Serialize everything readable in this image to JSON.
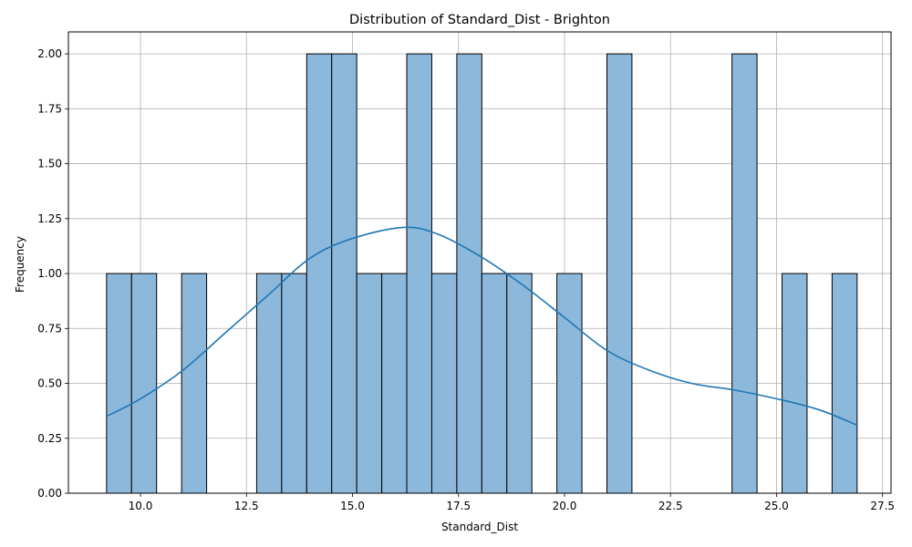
{
  "chart_data": {
    "type": "bar",
    "subtype": "histogram-with-kde",
    "title": "Distribution of Standard_Dist - Brighton",
    "xlabel": "Standard_Dist",
    "ylabel": "Frequency",
    "xlim": [
      8.3,
      27.7
    ],
    "ylim": [
      0,
      2.1
    ],
    "grid": true,
    "bin_width": 0.59,
    "bins": [
      {
        "start": 9.2,
        "end": 9.79,
        "count": 1
      },
      {
        "start": 9.79,
        "end": 10.38,
        "count": 1
      },
      {
        "start": 10.97,
        "end": 11.56,
        "count": 1
      },
      {
        "start": 12.74,
        "end": 13.33,
        "count": 1
      },
      {
        "start": 13.33,
        "end": 13.92,
        "count": 1
      },
      {
        "start": 13.92,
        "end": 14.51,
        "count": 2
      },
      {
        "start": 14.51,
        "end": 15.1,
        "count": 2
      },
      {
        "start": 15.1,
        "end": 15.69,
        "count": 1
      },
      {
        "start": 15.69,
        "end": 16.28,
        "count": 1
      },
      {
        "start": 16.28,
        "end": 16.87,
        "count": 2
      },
      {
        "start": 16.87,
        "end": 17.46,
        "count": 1
      },
      {
        "start": 17.46,
        "end": 18.05,
        "count": 2
      },
      {
        "start": 18.05,
        "end": 18.64,
        "count": 1
      },
      {
        "start": 18.64,
        "end": 19.23,
        "count": 1
      },
      {
        "start": 19.82,
        "end": 20.41,
        "count": 1
      },
      {
        "start": 21.0,
        "end": 21.59,
        "count": 2
      },
      {
        "start": 23.95,
        "end": 24.54,
        "count": 2
      },
      {
        "start": 25.13,
        "end": 25.72,
        "count": 1
      },
      {
        "start": 26.31,
        "end": 26.9,
        "count": 1
      }
    ],
    "kde": {
      "x": [
        9.2,
        10.0,
        11.0,
        12.0,
        13.0,
        14.0,
        15.0,
        16.2,
        17.0,
        18.0,
        19.0,
        20.0,
        21.0,
        22.0,
        23.0,
        24.0,
        25.0,
        26.0,
        26.9
      ],
      "y": [
        0.35,
        0.43,
        0.56,
        0.73,
        0.9,
        1.07,
        1.16,
        1.21,
        1.18,
        1.08,
        0.95,
        0.8,
        0.65,
        0.56,
        0.5,
        0.47,
        0.43,
        0.38,
        0.31
      ]
    },
    "x_ticks": [
      10.0,
      12.5,
      15.0,
      17.5,
      20.0,
      22.5,
      25.0,
      27.5
    ],
    "x_tick_labels": [
      "10.0",
      "12.5",
      "15.0",
      "17.5",
      "20.0",
      "22.5",
      "25.0",
      "27.5"
    ],
    "y_ticks": [
      0,
      0.25,
      0.5,
      0.75,
      1.0,
      1.25,
      1.5,
      1.75,
      2.0
    ],
    "y_tick_labels": [
      "0.00",
      "0.25",
      "0.50",
      "0.75",
      "1.00",
      "1.25",
      "1.50",
      "1.75",
      "2.00"
    ],
    "colors": {
      "bar_fill": "#8cb8db",
      "bar_edge": "#000000",
      "kde_line": "#1f77b4",
      "grid": "#b0b0b0"
    }
  }
}
